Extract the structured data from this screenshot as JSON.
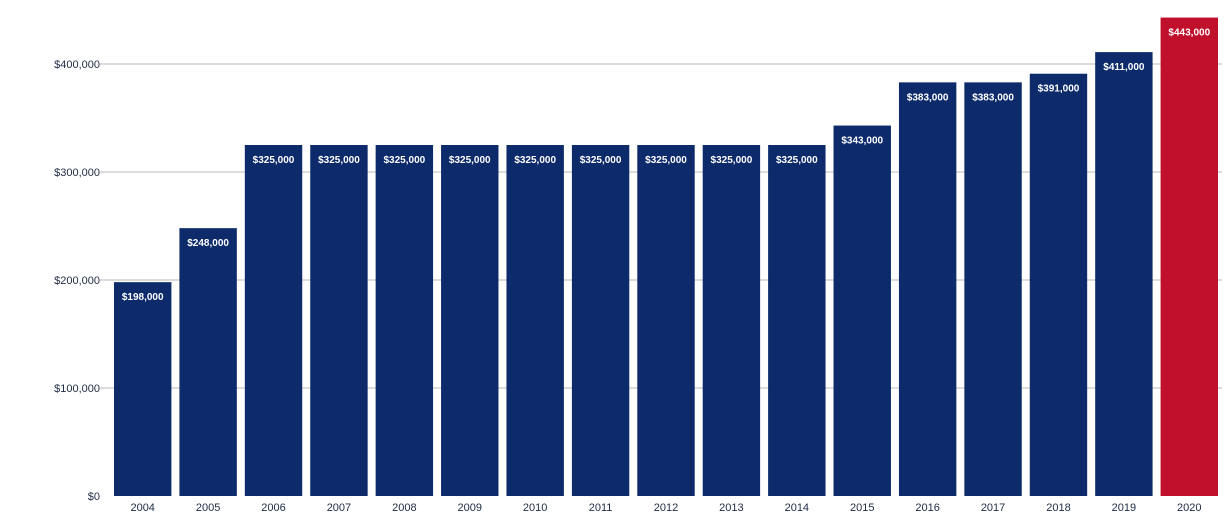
{
  "chart_data": {
    "type": "bar",
    "title": "",
    "xlabel": "",
    "ylabel": "",
    "categories": [
      "2004",
      "2005",
      "2006",
      "2007",
      "2008",
      "2009",
      "2010",
      "2011",
      "2012",
      "2013",
      "2014",
      "2015",
      "2016",
      "2017",
      "2018",
      "2019",
      "2020"
    ],
    "values": [
      198000,
      248000,
      325000,
      325000,
      325000,
      325000,
      325000,
      325000,
      325000,
      325000,
      325000,
      343000,
      383000,
      383000,
      391000,
      411000,
      443000
    ],
    "data_labels": [
      "$198,000",
      "$248,000",
      "$325,000",
      "$325,000",
      "$325,000",
      "$325,000",
      "$325,000",
      "$325,000",
      "$325,000",
      "$325,000",
      "$325,000",
      "$343,000",
      "$383,000",
      "$383,000",
      "$391,000",
      "$411,000",
      "$443,000"
    ],
    "highlight_index": 16,
    "ylim": [
      0,
      450000
    ],
    "yticks": [
      0,
      100000,
      200000,
      300000,
      400000
    ],
    "ytick_labels": [
      "$0",
      "$100,000",
      "$200,000",
      "$300,000",
      "$400,000"
    ],
    "grid": true,
    "colors": {
      "bar": "#0d2a6b",
      "highlight": "#c0102c",
      "grid": "#dcdcdc"
    }
  }
}
